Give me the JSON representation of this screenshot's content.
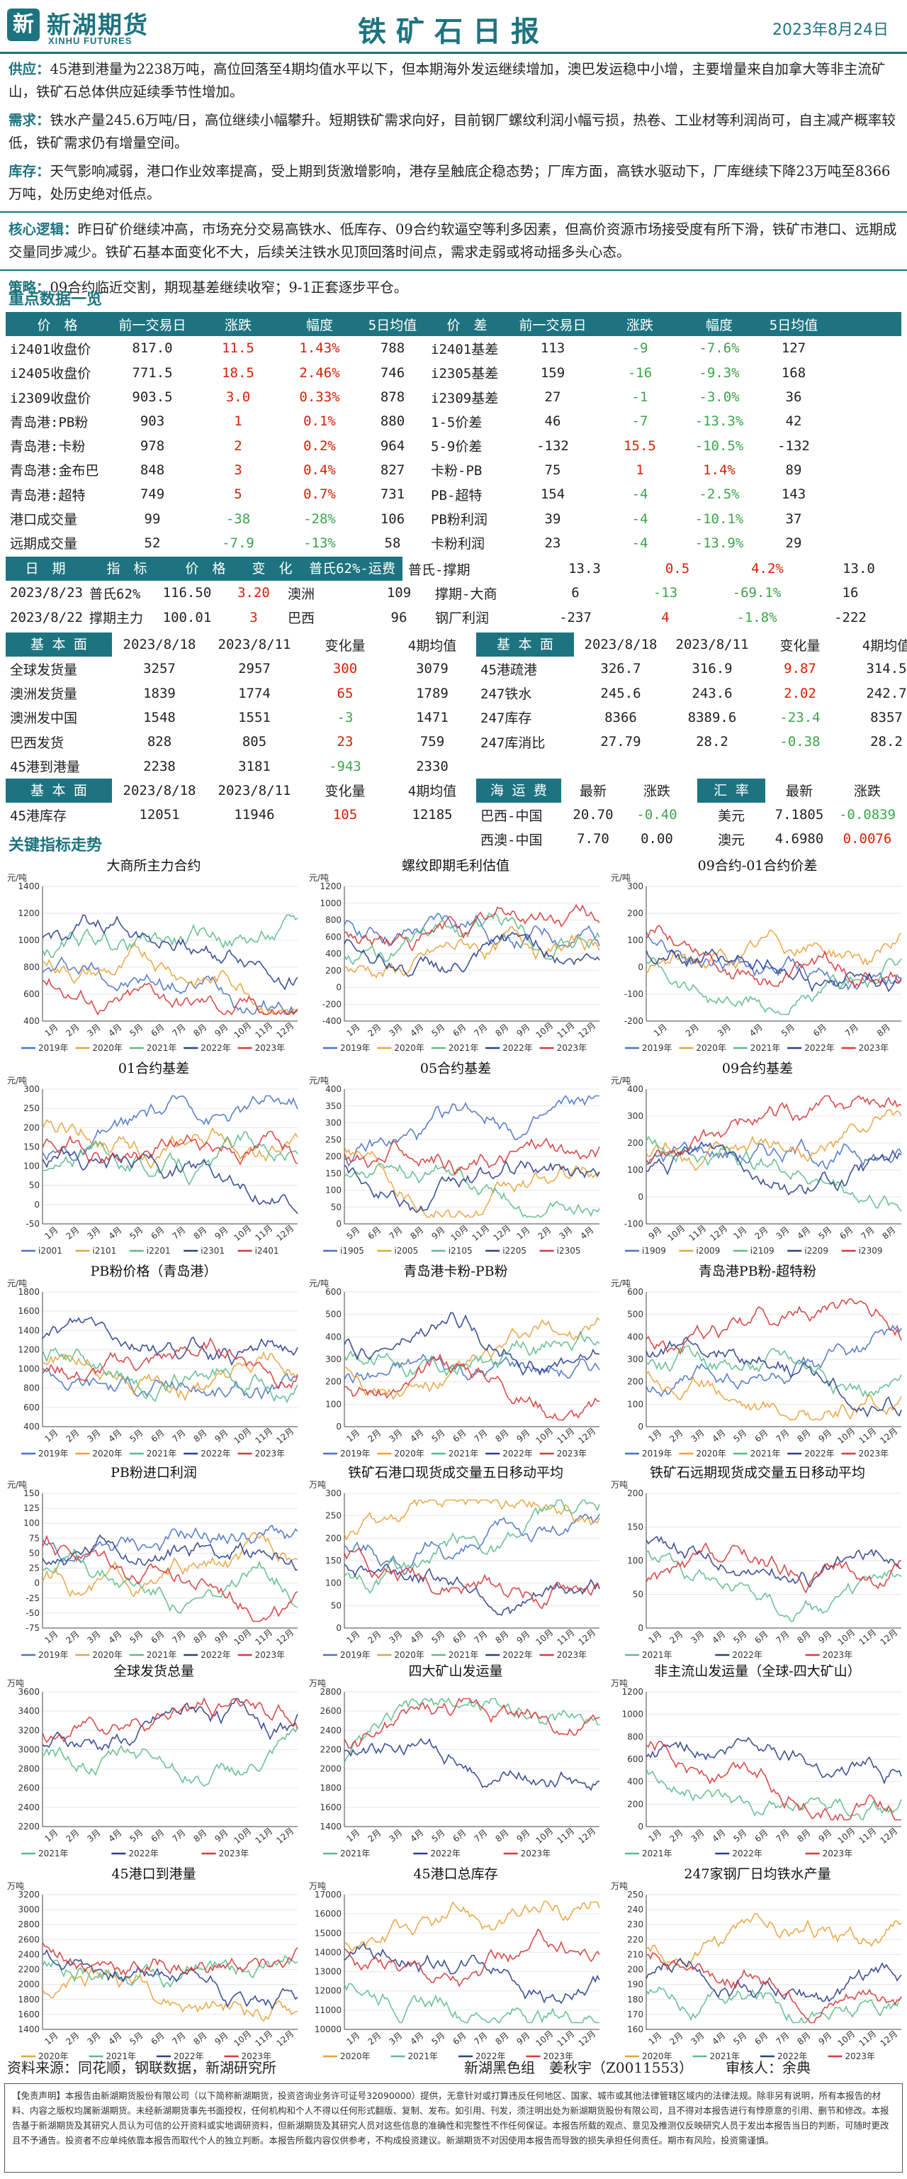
{
  "header": {
    "logo_cn": "新湖期货",
    "logo_en": "XINHU FUTURES",
    "title": "铁矿石日报",
    "date": "2023年8月24日"
  },
  "paras": [
    {
      "label": "供应：",
      "text": "45港到港量为2238万吨，高位回落至4期均值水平以下，但本期海外发运继续增加，澳巴发运稳中小增，主要增量来自加拿大等非主流矿山，铁矿石总体供应延续季节性增加。"
    },
    {
      "label": "需求：",
      "text": "铁水产量245.6万吨/日，高位继续小幅攀升。短期铁矿需求向好，目前钢厂螺纹利润小幅亏损，热卷、工业材等利润尚可，自主减产概率较低，铁矿需求仍有增量空间。"
    },
    {
      "label": "库存：",
      "text": "天气影响减弱，港口作业效率提高，受上期到货激增影响，港存呈触底企稳态势；厂库方面，高铁水驱动下，厂库继续下降23万吨至8366万吨，处历史绝对低点。"
    },
    {
      "label": "核心逻辑：",
      "text": "昨日矿价继续冲高，市场充分交易高铁水、低库存、09合约软逼空等利多因素，但高价资源市场接受度有所下滑，铁矿市港口、远期成交量同步减少。铁矿石基本面变化不大，后续关注铁水见顶回落时间点，需求走弱或将动摇多头心态。"
    },
    {
      "label": "策略：",
      "text": "09合约临近交割，期现基差继续收窄；9-1正套逐步平仓。"
    }
  ],
  "key_title": "重点数据一览",
  "price_table": {
    "headers": [
      "价　格",
      "前一交易日",
      "涨跌",
      "幅度",
      "5日均值",
      "价　差",
      "前一交易日",
      "涨跌",
      "幅度",
      "5日均值"
    ],
    "rows": [
      [
        "i2401收盘价",
        "817.0",
        "11.5",
        "1.43%",
        "788",
        "i2401基差",
        "113",
        "-9",
        "-7.6%",
        "127"
      ],
      [
        "i2405收盘价",
        "771.5",
        "18.5",
        "2.46%",
        "746",
        "i2305基差",
        "159",
        "-16",
        "-9.3%",
        "168"
      ],
      [
        "i2309收盘价",
        "903.5",
        "3.0",
        "0.33%",
        "878",
        "i2309基差",
        "27",
        "-1",
        "-3.0%",
        "36"
      ],
      [
        "青岛港:PB粉",
        "903",
        "1",
        "0.1%",
        "880",
        "1-5价差",
        "46",
        "-7",
        "-13.3%",
        "42"
      ],
      [
        "青岛港:卡粉",
        "978",
        "2",
        "0.2%",
        "964",
        "5-9价差",
        "-132",
        "15.5",
        "-10.5%",
        "-132"
      ],
      [
        "青岛港:金布巴",
        "848",
        "3",
        "0.4%",
        "827",
        "卡粉-PB",
        "75",
        "1",
        "1.4%",
        "89"
      ],
      [
        "青岛港:超特",
        "749",
        "5",
        "0.7%",
        "731",
        "PB-超特",
        "154",
        "-4",
        "-2.5%",
        "143"
      ],
      [
        "港口成交量",
        "99",
        "-38",
        "-28%",
        "106",
        "PB粉利润",
        "39",
        "-4",
        "-10.1%",
        "37"
      ],
      [
        "远期成交量",
        "52",
        "-7.9",
        "-13%",
        "58",
        "卡粉利润",
        "23",
        "-4",
        "-13.9%",
        "29"
      ]
    ],
    "dir": [
      [
        "u",
        "u",
        "u",
        "d",
        "d",
        "d"
      ],
      [
        "u",
        "u",
        "u",
        "d",
        "d",
        "d"
      ],
      [
        "u",
        "u",
        "u",
        "d",
        "d",
        "d"
      ],
      [
        "u",
        "u",
        "u",
        "d",
        "d",
        "d"
      ],
      [
        "u",
        "u",
        "u",
        "u",
        "d",
        "d"
      ],
      [
        "u",
        "u",
        "u",
        "u",
        "u",
        "u"
      ],
      [
        "u",
        "u",
        "u",
        "d",
        "d",
        "d"
      ],
      [
        "d",
        "d",
        "d",
        "d",
        "d",
        "d"
      ],
      [
        "d",
        "d",
        "d",
        "d",
        "d",
        "d"
      ]
    ]
  },
  "date_table": {
    "headers": [
      "日　期",
      "指　标",
      "价　格",
      "变　化",
      "普氏62%-运费",
      "普氏-撑期",
      "13.3",
      "0.5",
      "4.2%",
      "13.0"
    ],
    "rows": [
      [
        "2023/8/23",
        "普氏62%",
        "116.50",
        "3.20",
        "澳洲",
        "109",
        "撑期-大商",
        "6",
        "-13",
        "-69.1%",
        "16"
      ],
      [
        "2023/8/22",
        "撑期主力",
        "100.01",
        "3",
        "巴西",
        "96",
        "钢厂利润",
        "-237",
        "4",
        "-1.8%",
        "-222"
      ]
    ]
  },
  "fund_table": {
    "headers": [
      "基 本 面",
      "2023/8/18",
      "2023/8/11",
      "变化量",
      "4期均值",
      "基 本 面",
      "2023/8/18",
      "2023/8/11",
      "变化量",
      "4期均值"
    ],
    "rows": [
      [
        "全球发货量",
        "3257",
        "2957",
        "300",
        "3079",
        "45港疏港",
        "326.7",
        "316.9",
        "9.87",
        "314.5"
      ],
      [
        "澳洲发货量",
        "1839",
        "1774",
        "65",
        "1789",
        "247铁水",
        "245.6",
        "243.6",
        "2.02",
        "242.7"
      ],
      [
        "澳洲发中国",
        "1548",
        "1551",
        "-3",
        "1471",
        "247库存",
        "8366",
        "8389.6",
        "-23.4",
        "8357"
      ],
      [
        "巴西发货",
        "828",
        "805",
        "23",
        "759",
        "247库消比",
        "27.79",
        "28.2",
        "-0.38",
        "28.2"
      ],
      [
        "45港到港量",
        "2238",
        "3181",
        "-943",
        "2330"
      ]
    ],
    "dir": [
      "u",
      "u",
      "d",
      "u",
      "d",
      "u",
      "d",
      "d"
    ]
  },
  "fund2": {
    "headers": [
      "基 本 面",
      "2023/8/18",
      "2023/8/11",
      "变化量",
      "4期均值"
    ],
    "row": [
      "45港库存",
      "12051",
      "11946",
      "105",
      "12185"
    ]
  },
  "freight": {
    "headers": [
      "海 运 费",
      "最新",
      "涨跌"
    ],
    "rows": [
      [
        "巴西-中国",
        "20.70",
        "-0.40"
      ],
      [
        "西澳-中国",
        "7.70",
        "0.00"
      ]
    ]
  },
  "fx": {
    "headers": [
      "汇 率",
      "最新",
      "涨跌"
    ],
    "rows": [
      [
        "美元",
        "7.1805",
        "-0.0839"
      ],
      [
        "澳元",
        "4.6980",
        "0.0076"
      ]
    ]
  },
  "chart_section_title": "关键指标走势",
  "colors": {
    "teal": "#1d7480",
    "up": "#d81e06",
    "down": "#3aa54a",
    "s2019": "#4a72c4",
    "s2020": "#e8a23c",
    "s2021": "#5dbb8a",
    "s2022": "#2b3f8c",
    "s2023": "#d6393a"
  },
  "chart_data": [
    {
      "type": "line",
      "title": "大商所主力合约",
      "unit": "元/吨",
      "y_ticks": [
        1400,
        1200,
        1000,
        800,
        600,
        400
      ],
      "ylim": [
        400,
        1400
      ],
      "x_ticks": [
        "1月",
        "2月",
        "3月",
        "4月",
        "5月",
        "6月",
        "7月",
        "8月",
        "9月",
        "10月",
        "11月",
        "12月"
      ],
      "legend": [
        "2019年",
        "2020年",
        "2021年",
        "2022年",
        "2023年"
      ]
    },
    {
      "type": "line",
      "title": "螺纹即期毛利估值",
      "unit": "元/吨",
      "y_ticks": [
        1200,
        1000,
        800,
        600,
        400,
        200,
        0,
        -200,
        -400
      ],
      "ylim": [
        -400,
        1200
      ],
      "x_ticks": [
        "1月",
        "2月",
        "3月",
        "4月",
        "5月",
        "6月",
        "7月",
        "8月",
        "9月",
        "10月",
        "11月",
        "12月"
      ],
      "legend": [
        "2019年",
        "2020年",
        "2021年",
        "2022年",
        "2023年"
      ]
    },
    {
      "type": "line",
      "title": "09合约-01合约价差",
      "unit": "元/吨",
      "y_ticks": [
        300,
        200,
        100,
        0,
        -100,
        -200
      ],
      "ylim": [
        -200,
        300
      ],
      "x_ticks": [
        "1月",
        "2月",
        "3月",
        "4月",
        "5月",
        "6月",
        "7月",
        "8月"
      ],
      "legend": [
        "2019年",
        "2020年",
        "2021年",
        "2022年",
        "2023年"
      ]
    },
    {
      "type": "line",
      "title": "01合约基差",
      "unit": "元/吨",
      "y_ticks": [
        300,
        250,
        200,
        150,
        100,
        50,
        0,
        -50
      ],
      "ylim": [
        -50,
        300
      ],
      "x_ticks": [
        "1月",
        "2月",
        "3月",
        "4月",
        "5月",
        "6月",
        "7月",
        "8月",
        "9月",
        "10月",
        "11月",
        "12月"
      ],
      "legend": [
        "i2001",
        "i2101",
        "i2201",
        "i2301",
        "i2401"
      ]
    },
    {
      "type": "line",
      "title": "05合约基差",
      "unit": "元/吨",
      "y_ticks": [
        400,
        350,
        300,
        250,
        200,
        150,
        100,
        50,
        0
      ],
      "ylim": [
        0,
        400
      ],
      "x_ticks": [
        "5月",
        "6月",
        "7月",
        "8月",
        "9月",
        "10月",
        "11月",
        "12月",
        "1月",
        "2月",
        "3月",
        "4月"
      ],
      "legend": [
        "i1905",
        "i2005",
        "i2105",
        "i2205",
        "i2305"
      ]
    },
    {
      "type": "line",
      "title": "09合约基差",
      "unit": "元/吨",
      "y_ticks": [
        400,
        300,
        200,
        100,
        0,
        -100
      ],
      "ylim": [
        -100,
        400
      ],
      "x_ticks": [
        "9月",
        "10月",
        "11月",
        "12月",
        "1月",
        "2月",
        "3月",
        "4月",
        "5月",
        "6月",
        "7月",
        "8月"
      ],
      "legend": [
        "i1909",
        "i2009",
        "i2109",
        "i2209",
        "i2309"
      ]
    },
    {
      "type": "line",
      "title": "PB粉价格（青岛港）",
      "unit": "元/吨",
      "y_ticks": [
        1800,
        1600,
        1400,
        1200,
        1000,
        800,
        600,
        400
      ],
      "ylim": [
        400,
        1800
      ],
      "x_ticks": [
        "1月",
        "2月",
        "3月",
        "4月",
        "5月",
        "6月",
        "7月",
        "8月",
        "9月",
        "10月",
        "11月",
        "12月"
      ],
      "legend": [
        "2019年",
        "2020年",
        "2021年",
        "2022年",
        "2023年"
      ]
    },
    {
      "type": "line",
      "title": "青岛港卡粉-PB粉",
      "unit": "元/吨",
      "y_ticks": [
        600,
        500,
        400,
        300,
        200,
        100,
        0
      ],
      "ylim": [
        0,
        600
      ],
      "x_ticks": [
        "1月",
        "2月",
        "3月",
        "4月",
        "5月",
        "6月",
        "7月",
        "8月",
        "9月",
        "10月",
        "11月",
        "12月"
      ],
      "legend": [
        "2019年",
        "2020年",
        "2021年",
        "2022年",
        "2023年"
      ]
    },
    {
      "type": "line",
      "title": "青岛港PB粉-超特粉",
      "unit": "元/吨",
      "y_ticks": [
        600,
        500,
        400,
        300,
        200,
        100,
        0
      ],
      "ylim": [
        0,
        600
      ],
      "x_ticks": [
        "1月",
        "2月",
        "3月",
        "4月",
        "5月",
        "6月",
        "7月",
        "8月",
        "9月",
        "10月",
        "11月",
        "12月"
      ],
      "legend": [
        "2019年",
        "2020年",
        "2021年",
        "2022年",
        "2023年"
      ]
    },
    {
      "type": "line",
      "title": "PB粉进口利润",
      "unit": "元/吨",
      "y_ticks": [
        150,
        125,
        100,
        75,
        50,
        25,
        0,
        -25,
        -50,
        -75
      ],
      "ylim": [
        -75,
        150
      ],
      "x_ticks": [
        "1月",
        "2月",
        "3月",
        "4月",
        "5月",
        "6月",
        "7月",
        "8月",
        "9月",
        "10月",
        "11月",
        "12月"
      ],
      "legend": [
        "2019年",
        "2020年",
        "2021年",
        "2022年",
        "2023年"
      ]
    },
    {
      "type": "line",
      "title": "铁矿石港口现货成交量五日移动平均",
      "unit": "万吨",
      "y_ticks": [
        300,
        250,
        200,
        150,
        100,
        50,
        0
      ],
      "ylim": [
        0,
        300
      ],
      "x_ticks": [
        "1月",
        "2月",
        "3月",
        "4月",
        "5月",
        "6月",
        "7月",
        "8月",
        "9月",
        "10月",
        "11月",
        "12月"
      ],
      "legend": [
        "2019年",
        "2020年",
        "2021年",
        "2022年",
        "2023年"
      ]
    },
    {
      "type": "line",
      "title": "铁矿石远期现货成交量五日移动平均",
      "unit": "万吨",
      "y_ticks": [
        200,
        150,
        100,
        50,
        0
      ],
      "ylim": [
        0,
        200
      ],
      "x_ticks": [
        "1月",
        "2月",
        "3月",
        "4月",
        "5月",
        "6月",
        "7月",
        "8月",
        "9月",
        "10月",
        "11月",
        "12月"
      ],
      "legend": [
        "2021年",
        "2022年",
        "2023年"
      ]
    },
    {
      "type": "line",
      "title": "全球发货总量",
      "unit": "万吨",
      "y_ticks": [
        3600,
        3400,
        3200,
        3000,
        2800,
        2600,
        2400,
        2200
      ],
      "ylim": [
        2200,
        3600
      ],
      "x_ticks": [
        "1月",
        "2月",
        "3月",
        "4月",
        "5月",
        "6月",
        "7月",
        "8月",
        "9月",
        "10月",
        "11月",
        "12月"
      ],
      "legend": [
        "2021年",
        "2022年",
        "2023年"
      ]
    },
    {
      "type": "line",
      "title": "四大矿山发运量",
      "unit": "万吨",
      "y_ticks": [
        2800,
        2600,
        2400,
        2200,
        2000,
        1800,
        1600,
        1400
      ],
      "ylim": [
        1400,
        2800
      ],
      "x_ticks": [
        "1月",
        "2月",
        "3月",
        "4月",
        "5月",
        "6月",
        "7月",
        "8月",
        "9月",
        "10月",
        "11月",
        "12月"
      ],
      "legend": [
        "2021年",
        "2022年",
        "2023年"
      ]
    },
    {
      "type": "line",
      "title": "非主流山发运量（全球-四大矿山）",
      "unit": "万吨",
      "y_ticks": [
        1200,
        1000,
        800,
        600,
        400,
        200,
        0
      ],
      "ylim": [
        0,
        1200
      ],
      "x_ticks": [
        "1月",
        "2月",
        "3月",
        "4月",
        "5月",
        "6月",
        "7月",
        "8月",
        "9月",
        "10月",
        "11月",
        "12月"
      ],
      "legend": [
        "2021年",
        "2022年",
        "2023年"
      ]
    },
    {
      "type": "line",
      "title": "45港口到港量",
      "unit": "万吨",
      "y_ticks": [
        3200,
        3000,
        2800,
        2600,
        2400,
        2200,
        2000,
        1800,
        1600,
        1400
      ],
      "ylim": [
        1400,
        3200
      ],
      "x_ticks": [
        "1月",
        "2月",
        "3月",
        "4月",
        "5月",
        "6月",
        "7月",
        "8月",
        "9月",
        "10月",
        "11月",
        "12月"
      ],
      "legend": [
        "2020年",
        "2021年",
        "2022年",
        "2023年"
      ]
    },
    {
      "type": "line",
      "title": "45港口总库存",
      "unit": "万吨",
      "y_ticks": [
        17000,
        16000,
        15000,
        14000,
        13000,
        12000,
        11000,
        10000
      ],
      "ylim": [
        10000,
        17000
      ],
      "x_ticks": [
        "1月",
        "2月",
        "3月",
        "4月",
        "5月",
        "6月",
        "7月",
        "8月",
        "9月",
        "10月",
        "11月",
        "12月"
      ],
      "legend": [
        "2020年",
        "2021年",
        "2022年",
        "2023年"
      ]
    },
    {
      "type": "line",
      "title": "247家钢厂日均铁水产量",
      "unit": "万吨",
      "y_ticks": [
        250,
        240,
        230,
        220,
        210,
        200,
        190,
        180,
        170,
        160
      ],
      "ylim": [
        160,
        250
      ],
      "x_ticks": [
        "1月",
        "2月",
        "3月",
        "4月",
        "5月",
        "6月",
        "7月",
        "8月",
        "9月",
        "10月",
        "11月",
        "12月"
      ],
      "legend": [
        "2020年",
        "2021年",
        "2022年",
        "2023年"
      ]
    }
  ],
  "footer": {
    "source": "资料来源：同花顺，钢联数据，新湖研究所",
    "group": "新湖黑色组　姜秋宇（Z0011553）",
    "reviewer": "审核人：余典",
    "disclaimer": "【免责声明】本报告由新湖期货股份有限公司（以下简称新湖期货，投资咨询业务许可证号32090000）提供，无意针对或打算违反任何地区、国家、城市或其他法律管辖区域内的法律法规。除非另有说明，所有本报告的材料、内容之版权均属新湖期货。未经新湖期货事先书面授权，任何机构和个人不得以任何形式翻版、复制、发布。如引用、刊发，须注明出处为新湖期货股份有限公司，且不得对本报告进行有悖原意的引用、删节和修改。本报告基于新湖期货及其研究人员认为可信的公开资料或实地调研资料，但新湖期货及其研究人员对这些信息的准确性和完整性不作任何保证。本报告所载的观点、意见及推测仅反映研究人员于发出本报告当日的判断，可随时更改且不予通告。投资者不应单纯依靠本报告而取代个人的独立判断。本报告所载内容仅供参考，不构成投资建议。新湖期货不对因使用本报告而导致的损失承担任何责任。期市有风险，投资需谨慎。"
  }
}
